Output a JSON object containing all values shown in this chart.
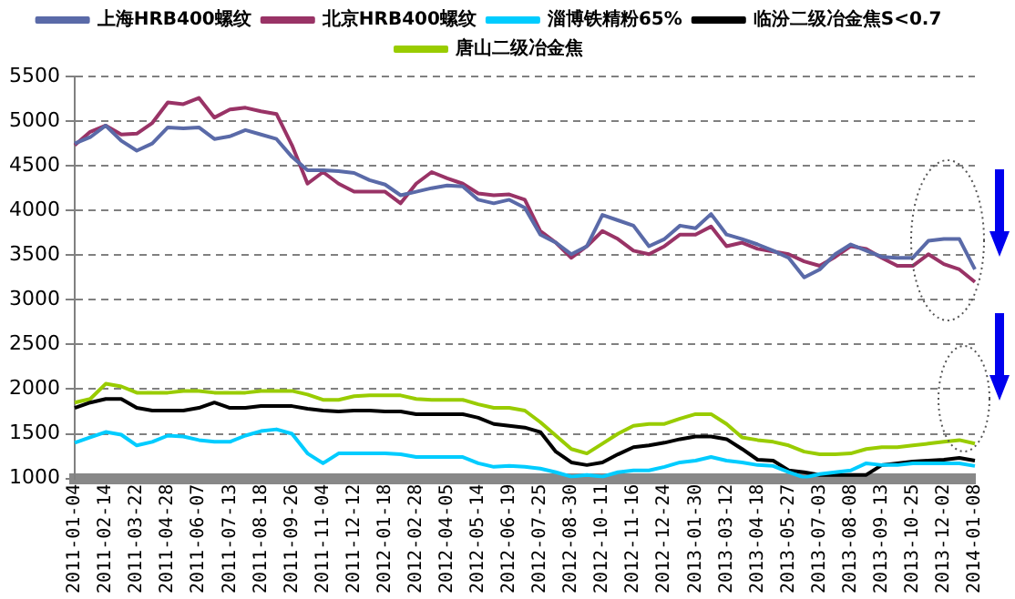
{
  "chart_data": {
    "type": "line",
    "categories": [
      "2011-01-04",
      null,
      "2011-02-14",
      null,
      "2011-03-22",
      null,
      "2011-04-28",
      null,
      "2011-06-07",
      null,
      "2011-07-13",
      null,
      "2011-08-18",
      null,
      "2011-09-26",
      null,
      "2011-11-04",
      null,
      "2011-12-12",
      null,
      "2012-01-18",
      null,
      "2012-02-28",
      null,
      "2012-04-05",
      null,
      "2012-05-14",
      null,
      "2012-06-19",
      null,
      "2012-07-25",
      null,
      "2012-08-30",
      null,
      "2012-10-11",
      null,
      "2012-11-16",
      null,
      "2012-12-24",
      null,
      "2013-01-30",
      null,
      "2013-03-12",
      null,
      "2013-04-18",
      null,
      "2013-05-27",
      null,
      "2013-07-03",
      null,
      "2013-08-08",
      null,
      "2013-09-13",
      null,
      "2013-10-25",
      null,
      "2013-12-02",
      null,
      "2014-01-08"
    ],
    "series": [
      {
        "name": "上海HRB400螺纹",
        "color": "#5a6aa8",
        "values": [
          4750,
          4820,
          4950,
          4780,
          4670,
          4750,
          4930,
          4920,
          4930,
          4800,
          4830,
          4900,
          4850,
          4800,
          4600,
          4450,
          4450,
          4440,
          4420,
          4340,
          4290,
          4170,
          4210,
          4250,
          4280,
          4270,
          4120,
          4080,
          4120,
          4030,
          3730,
          3640,
          3510,
          3600,
          3950,
          3890,
          3830,
          3600,
          3680,
          3830,
          3800,
          3960,
          3730,
          3680,
          3620,
          3550,
          3470,
          3250,
          3340,
          3510,
          3620,
          3550,
          3480,
          3470,
          3470,
          3660,
          3680,
          3680,
          3340
        ]
      },
      {
        "name": "北京HRB400螺纹",
        "color": "#993366",
        "values": [
          4730,
          4880,
          4950,
          4850,
          4860,
          4980,
          5210,
          5190,
          5260,
          5040,
          5130,
          5150,
          5110,
          5080,
          4730,
          4300,
          4430,
          4300,
          4210,
          4210,
          4210,
          4080,
          4300,
          4430,
          4360,
          4300,
          4190,
          4170,
          4180,
          4120,
          3770,
          3640,
          3470,
          3600,
          3770,
          3680,
          3550,
          3510,
          3600,
          3730,
          3730,
          3820,
          3600,
          3640,
          3570,
          3540,
          3510,
          3430,
          3380,
          3480,
          3600,
          3570,
          3470,
          3380,
          3380,
          3510,
          3400,
          3340,
          3200
        ]
      },
      {
        "name": "淄博铁精粉65%",
        "color": "#00ccff",
        "values": [
          1400,
          1460,
          1520,
          1490,
          1370,
          1410,
          1480,
          1470,
          1430,
          1410,
          1410,
          1480,
          1530,
          1550,
          1500,
          1280,
          1170,
          1280,
          1280,
          1280,
          1280,
          1270,
          1240,
          1240,
          1240,
          1240,
          1170,
          1130,
          1140,
          1130,
          1110,
          1070,
          1020,
          1040,
          1020,
          1070,
          1090,
          1090,
          1130,
          1180,
          1200,
          1240,
          1200,
          1180,
          1150,
          1140,
          1070,
          1010,
          1050,
          1070,
          1090,
          1170,
          1150,
          1150,
          1170,
          1170,
          1170,
          1170,
          1140
        ]
      },
      {
        "name": "临汾二级冶金焦S<0.7",
        "color": "#000000",
        "values": [
          1790,
          1850,
          1890,
          1890,
          1790,
          1760,
          1760,
          1760,
          1790,
          1850,
          1790,
          1790,
          1810,
          1810,
          1810,
          1780,
          1760,
          1750,
          1760,
          1760,
          1750,
          1750,
          1720,
          1720,
          1720,
          1720,
          1680,
          1610,
          1590,
          1570,
          1520,
          1300,
          1180,
          1150,
          1180,
          1270,
          1350,
          1370,
          1400,
          1440,
          1470,
          1470,
          1440,
          1330,
          1210,
          1200,
          1090,
          1070,
          1040,
          1040,
          1040,
          1040,
          1150,
          1170,
          1190,
          1200,
          1210,
          1230,
          1200
        ]
      },
      {
        "name": "唐山二级冶金焦",
        "color": "#99cc00",
        "values": [
          1850,
          1890,
          2060,
          2030,
          1960,
          1960,
          1960,
          1980,
          1980,
          1960,
          1960,
          1960,
          1980,
          1980,
          1980,
          1940,
          1880,
          1880,
          1920,
          1930,
          1930,
          1930,
          1890,
          1880,
          1880,
          1880,
          1830,
          1790,
          1790,
          1760,
          1630,
          1480,
          1330,
          1280,
          1390,
          1500,
          1590,
          1610,
          1610,
          1670,
          1720,
          1720,
          1610,
          1460,
          1430,
          1410,
          1370,
          1300,
          1270,
          1270,
          1280,
          1330,
          1350,
          1350,
          1370,
          1390,
          1410,
          1430,
          1390
        ]
      }
    ],
    "ylim": [
      1000,
      5500
    ],
    "yticks": [
      1000,
      1500,
      2000,
      2500,
      3000,
      3500,
      4000,
      4500,
      5000,
      5500
    ],
    "grid": "y",
    "legend": "top",
    "marker": "none",
    "line_style": "solid"
  }
}
